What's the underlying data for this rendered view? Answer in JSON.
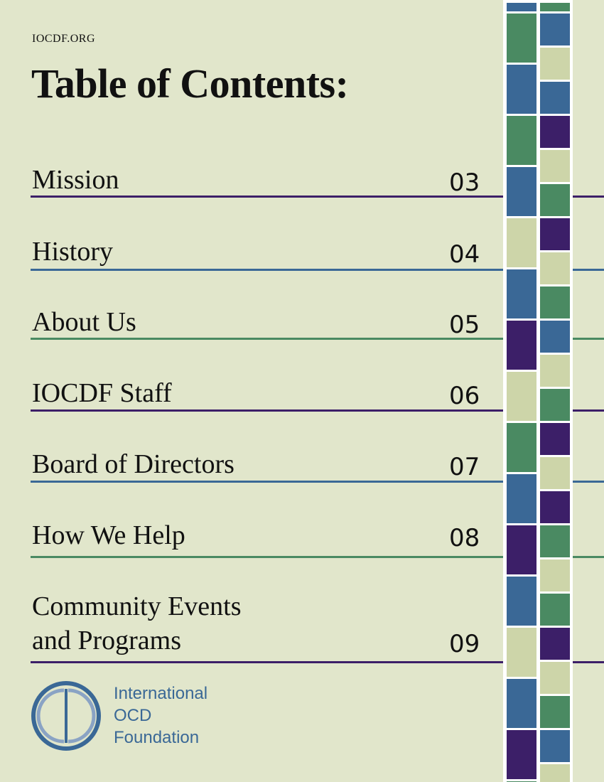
{
  "header": {
    "site_url": "IOCDF.ORG",
    "title": "Table of Contents:"
  },
  "toc": [
    {
      "label": "Mission",
      "page": "03",
      "line_color": "#3c1f68"
    },
    {
      "label": "History",
      "page": "04",
      "line_color": "#3a6896"
    },
    {
      "label": "About Us",
      "page": "05",
      "line_color": "#4a8a62"
    },
    {
      "label": "IOCDF Staff",
      "page": "06",
      "line_color": "#3c1f68"
    },
    {
      "label": "Board of Directors",
      "page": "07",
      "line_color": "#3a6896"
    },
    {
      "label": "How We Help",
      "page": "08",
      "line_color": "#4a8a62"
    },
    {
      "label": "Community Events\nand Programs",
      "page": "09",
      "line_color": "#3c1f68"
    }
  ],
  "logo": {
    "line1": "International",
    "line2": "OCD",
    "line3": "Foundation",
    "color": "#3a6896"
  },
  "colors": {
    "background": "#e1e6cb",
    "green": "#4a8a62",
    "blue": "#3a6896",
    "purple": "#3c1f68",
    "pale": "#cdd5a9"
  },
  "mosaic": {
    "left_column": [
      "blue",
      "green",
      "blue",
      "green",
      "blue",
      "pale",
      "blue",
      "purple",
      "pale",
      "green",
      "blue",
      "purple",
      "blue",
      "pale",
      "blue",
      "purple",
      "green"
    ],
    "right_column": [
      "green",
      "blue",
      "pale",
      "blue",
      "purple",
      "pale",
      "green",
      "purple",
      "pale",
      "green",
      "blue",
      "pale",
      "green",
      "purple",
      "pale",
      "purple",
      "green",
      "pale",
      "green",
      "purple",
      "pale",
      "green",
      "blue",
      "pale"
    ]
  }
}
